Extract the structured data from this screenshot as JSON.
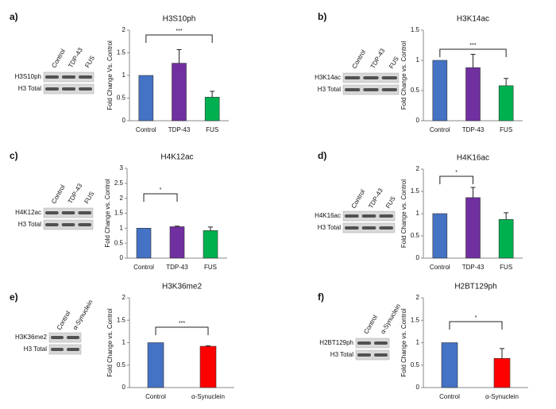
{
  "chart_data": [
    {
      "type": "bar",
      "panel_label": "a)",
      "title": "H3S10ph",
      "ylabel": "Fold Change Vs. Control",
      "blot": {
        "lanes": [
          "Control",
          "TDP-43",
          "FUS"
        ],
        "rows": [
          "H3S10ph",
          "H3 Total"
        ]
      },
      "categories": [
        "Control",
        "TDP-43",
        "FUS"
      ],
      "values": [
        1,
        1.27,
        0.52
      ],
      "errors": [
        0,
        0.3,
        0.13
      ],
      "colors": [
        "#4472c4",
        "#7030a0",
        "#00b050"
      ],
      "ylim": [
        0,
        2
      ],
      "yticks": [
        0,
        0.5,
        1,
        1.5,
        2
      ],
      "significance": "***"
    },
    {
      "type": "bar",
      "panel_label": "b)",
      "title": "H3K14ac",
      "ylabel": "Fold Change vs. Control",
      "blot": {
        "lanes": [
          "Control",
          "TDP-43",
          "FUS"
        ],
        "rows": [
          "H3K14ac",
          "H3 Total"
        ]
      },
      "categories": [
        "Control",
        "TDP-43",
        "FUS"
      ],
      "values": [
        1,
        0.88,
        0.58
      ],
      "errors": [
        0,
        0.22,
        0.12
      ],
      "colors": [
        "#4472c4",
        "#7030a0",
        "#00b050"
      ],
      "ylim": [
        0,
        1.5
      ],
      "yticks": [
        0,
        0.5,
        1,
        1.5
      ],
      "significance": "***"
    },
    {
      "type": "bar",
      "panel_label": "c)",
      "title": "H4K12ac",
      "ylabel": "Fold Change vs. Control",
      "blot": {
        "lanes": [
          "Control",
          "TDP-43",
          "FUS"
        ],
        "rows": [
          "H4K12ac",
          "H3 Total"
        ]
      },
      "categories": [
        "Control",
        "TDP-43",
        "FUS"
      ],
      "values": [
        1,
        1.05,
        0.92
      ],
      "errors": [
        0,
        0.02,
        0.12
      ],
      "colors": [
        "#4472c4",
        "#7030a0",
        "#00b050"
      ],
      "ylim": [
        0,
        3
      ],
      "yticks": [
        0,
        0.5,
        1,
        1.5,
        2,
        2.5,
        3
      ],
      "significance": "*"
    },
    {
      "type": "bar",
      "panel_label": "d)",
      "title": "H4K16ac",
      "ylabel": "Fold Change vs. Control",
      "blot": {
        "lanes": [
          "Control",
          "TDP-43",
          "FUS"
        ],
        "rows": [
          "H4K16ac",
          "H3 Total"
        ]
      },
      "categories": [
        "Control",
        "TDP-43",
        "FUS"
      ],
      "values": [
        1,
        1.36,
        0.87
      ],
      "errors": [
        0,
        0.23,
        0.15
      ],
      "colors": [
        "#4472c4",
        "#7030a0",
        "#00b050"
      ],
      "ylim": [
        0,
        2
      ],
      "yticks": [
        0,
        0.5,
        1,
        1.5,
        2
      ],
      "significance": "*"
    },
    {
      "type": "bar",
      "panel_label": "e)",
      "title": "H3K36me2",
      "ylabel": "Fold Change vs. Control",
      "blot": {
        "lanes": [
          "Control",
          "α-Synuclein"
        ],
        "rows": [
          "H3K36me2",
          "H3 Total"
        ]
      },
      "categories": [
        "Control",
        "α-Synuclein"
      ],
      "values": [
        1,
        0.92
      ],
      "errors": [
        0,
        0.01
      ],
      "colors": [
        "#4472c4",
        "#ff0000"
      ],
      "ylim": [
        0,
        2
      ],
      "yticks": [
        0,
        0.5,
        1,
        1.5,
        2
      ],
      "significance": "***"
    },
    {
      "type": "bar",
      "panel_label": "f)",
      "title": "H2BT129ph",
      "ylabel": "Fold Change vs. Control",
      "blot": {
        "lanes": [
          "Control",
          "α-Synuclein"
        ],
        "rows": [
          "H2BT129ph",
          "H3 Total"
        ]
      },
      "categories": [
        "Control",
        "α-Synuclein"
      ],
      "values": [
        1,
        0.65
      ],
      "errors": [
        0,
        0.22
      ],
      "colors": [
        "#4472c4",
        "#ff0000"
      ],
      "ylim": [
        0,
        2
      ],
      "yticks": [
        0,
        0.5,
        1,
        1.5,
        2
      ],
      "significance": "*"
    }
  ]
}
